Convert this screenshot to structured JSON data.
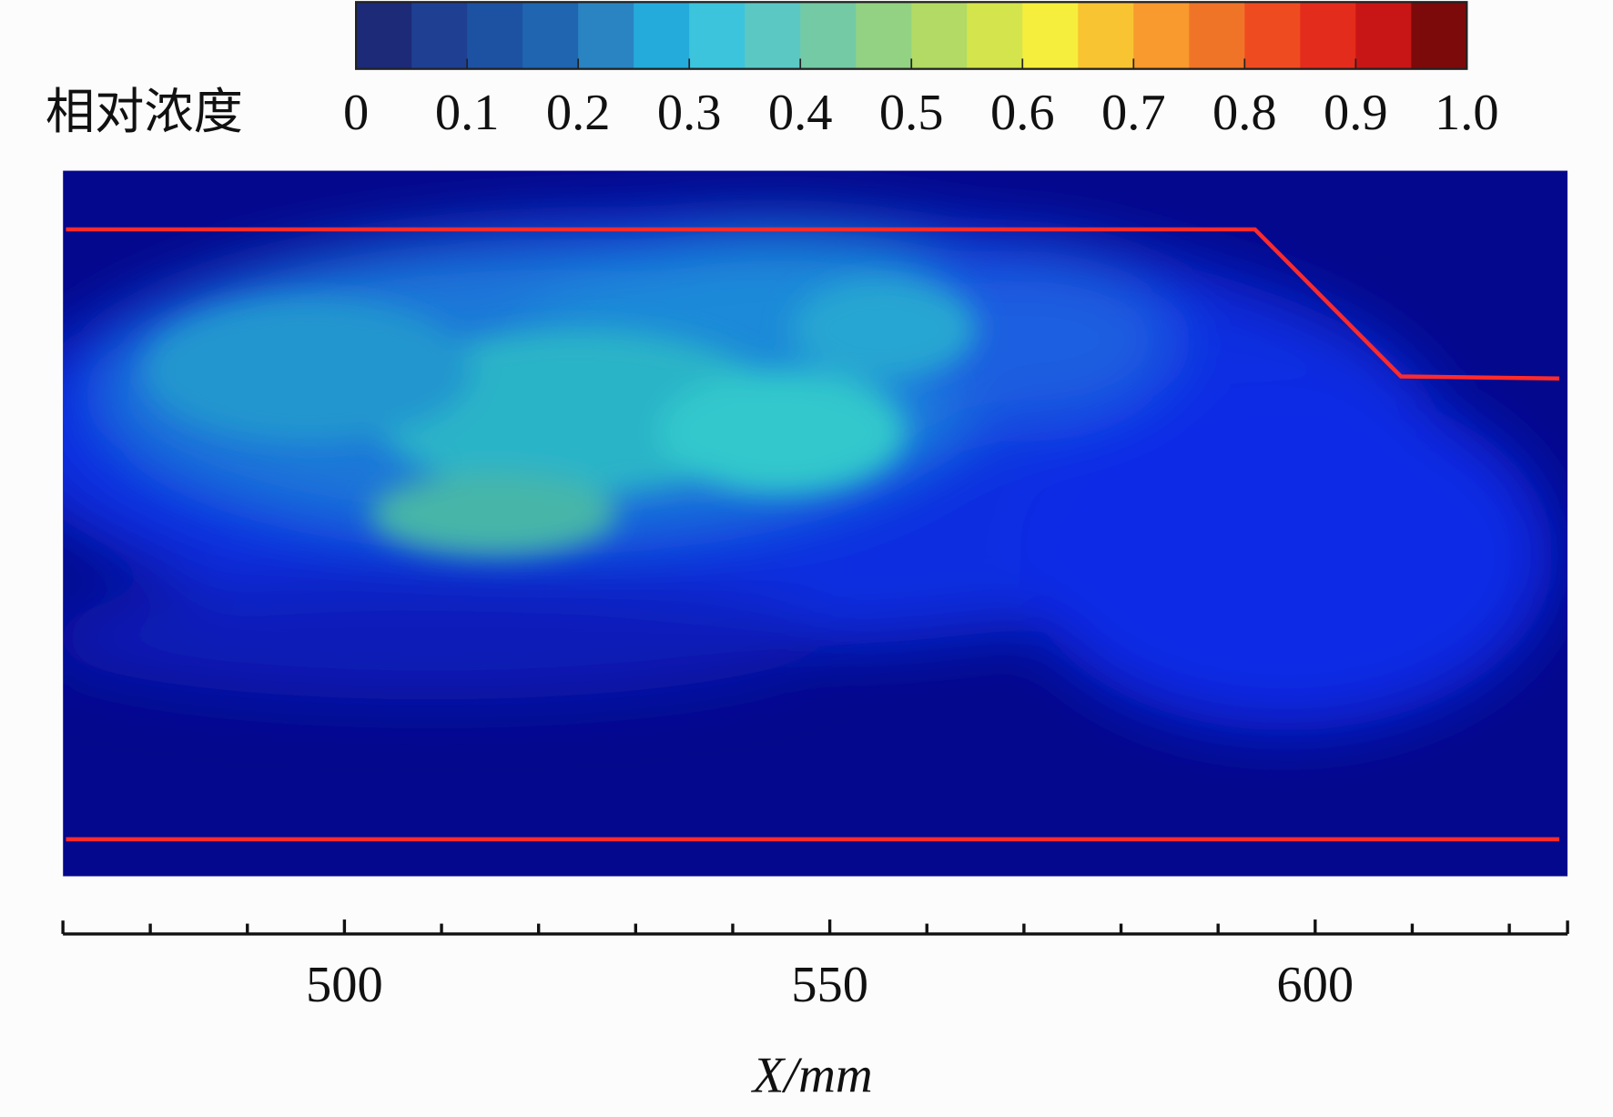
{
  "chart_data": {
    "type": "heatmap",
    "colorbar_label": "相对浓度",
    "colorbar_lim": [
      0,
      1
    ],
    "colorbar_ticks": [
      0,
      0.1,
      0.2,
      0.3,
      0.4,
      0.5,
      0.6,
      0.7,
      0.8,
      0.9,
      {
        "value": 1,
        "label": "1.0"
      }
    ],
    "colormap": [
      "#1c2a78",
      "#1f3f92",
      "#1d52a2",
      "#1f65b0",
      "#2a84c2",
      "#24abdc",
      "#3cc4dc",
      "#5cc8c4",
      "#74caa4",
      "#92d282",
      "#b2da64",
      "#d4e44c",
      "#f6ee3c",
      "#f8c432",
      "#f89a2e",
      "#f07428",
      "#ee4c20",
      "#e42c1c",
      "#c81616",
      "#7c0a0a"
    ],
    "x_label": "X/mm",
    "xlim": [
      471,
      626
    ],
    "xticks": [
      500,
      550,
      600
    ],
    "xminor_ticks": [
      480,
      490,
      510,
      520,
      530,
      540,
      560,
      570,
      580,
      590,
      610,
      620
    ]
  }
}
